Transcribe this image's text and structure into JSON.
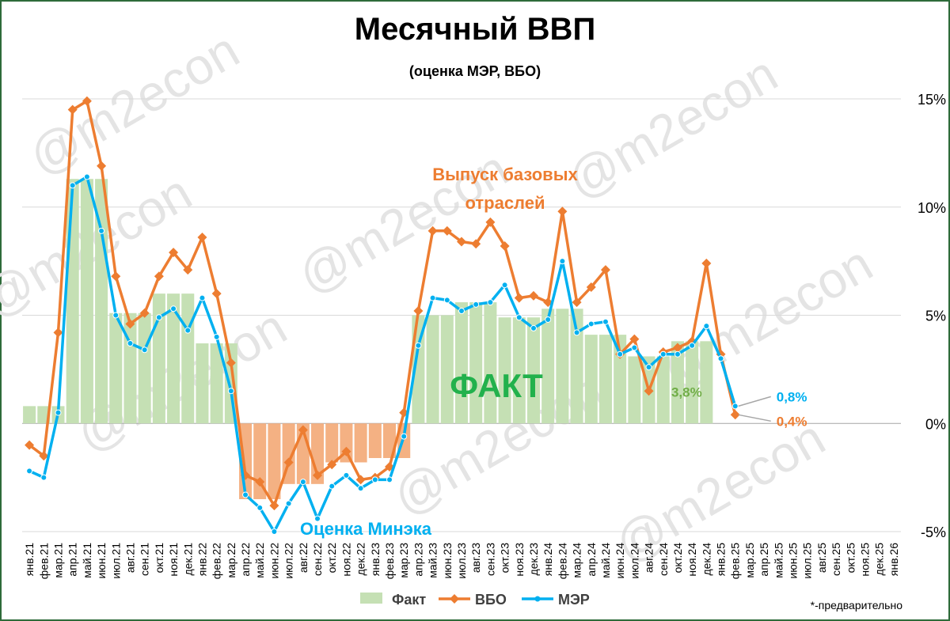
{
  "chart_data": {
    "type": "bar-line",
    "title": "Месячный ВВП",
    "subtitle": "(оценка МЭР, ВБО)",
    "watermark": "@m2econ",
    "note": "*-предварительно",
    "annotations": [
      {
        "text": [
          "Выпуск базовых",
          "отраслей"
        ],
        "color": "#ed7d31"
      },
      {
        "text": [
          "Оценка Минэка"
        ],
        "color": "#00b0f0"
      },
      {
        "text": [
          "ФАКТ"
        ],
        "color": "#22b14c"
      }
    ],
    "categories": [
      "янв.21",
      "фев.21",
      "мар.21",
      "апр.21",
      "май.21",
      "июн.21",
      "июл.21",
      "авг.21",
      "сен.21",
      "окт.21",
      "ноя.21",
      "дек.21",
      "янв.22",
      "фев.22",
      "мар.22",
      "апр.22",
      "май.22",
      "июн.22",
      "июл.22",
      "авг.22",
      "сен.22",
      "окт.22",
      "ноя.22",
      "дек.22",
      "янв.23",
      "фев.23",
      "мар.23",
      "апр.23",
      "май.23",
      "июн.23",
      "июл.23",
      "авг.23",
      "сен.23",
      "окт.23",
      "ноя.23",
      "дек.23",
      "янв.24",
      "фев.24",
      "мар.24",
      "апр.24",
      "май.24",
      "июн.24",
      "июл.24",
      "авг.24",
      "сен.24",
      "окт.24",
      "ноя.24",
      "дек.24",
      "янв.25",
      "фев.25",
      "мар.25",
      "апр.25",
      "май.25",
      "июн.25",
      "июл.25",
      "авг.25",
      "сен.25",
      "окт.25",
      "ноя.25",
      "дек.25",
      "янв.26"
    ],
    "series": [
      {
        "name": "Факт",
        "kind": "bar",
        "color": "#c5e0b4",
        "negative_color": "#f4b183",
        "label_color": "#70ad47",
        "values": [
          0.8,
          0.8,
          0.8,
          11.3,
          11.3,
          11.3,
          5.1,
          5.1,
          5.1,
          6.0,
          6.0,
          6.0,
          3.7,
          3.7,
          3.7,
          -3.5,
          -3.5,
          -3.5,
          -2.8,
          -2.8,
          -2.8,
          -1.8,
          -1.8,
          -1.8,
          -1.6,
          -1.6,
          -1.6,
          5.0,
          5.0,
          5.0,
          5.6,
          5.6,
          5.6,
          4.9,
          4.9,
          4.9,
          5.3,
          5.3,
          5.3,
          4.1,
          4.1,
          4.1,
          3.1,
          3.1,
          3.1,
          3.8,
          3.8,
          3.8,
          null,
          null,
          null,
          null,
          null,
          null,
          null,
          null,
          null,
          null,
          null,
          null,
          null
        ],
        "value_labels": [
          null,
          null,
          null,
          null,
          null,
          null,
          null,
          null,
          null,
          null,
          null,
          null,
          null,
          null,
          null,
          null,
          null,
          null,
          null,
          null,
          null,
          null,
          null,
          null,
          null,
          null,
          null,
          null,
          null,
          null,
          null,
          null,
          null,
          null,
          null,
          null,
          null,
          null,
          null,
          null,
          null,
          null,
          null,
          null,
          null,
          null,
          null,
          "3,8%",
          null,
          null,
          null,
          null,
          null,
          null,
          null,
          null,
          null,
          null,
          null,
          null,
          null
        ]
      },
      {
        "name": "ВБО",
        "kind": "line",
        "marker": "diamond",
        "color": "#ed7d31",
        "values": [
          -1.0,
          -1.5,
          4.2,
          14.5,
          14.9,
          11.9,
          6.8,
          4.6,
          5.1,
          6.8,
          7.9,
          7.1,
          8.6,
          6.0,
          2.8,
          -2.4,
          -2.7,
          -3.8,
          -1.8,
          -0.3,
          -2.4,
          -1.9,
          -1.3,
          -2.6,
          -2.5,
          -2.0,
          0.5,
          5.2,
          8.9,
          8.9,
          8.4,
          8.3,
          9.3,
          8.2,
          5.8,
          5.9,
          5.6,
          9.8,
          5.6,
          6.3,
          7.1,
          3.2,
          3.9,
          1.5,
          3.3,
          3.5,
          3.8,
          7.4,
          3.2,
          0.4,
          null,
          null,
          null,
          null,
          null,
          null,
          null,
          null,
          null,
          null,
          null
        ],
        "value_labels": [
          null,
          null,
          null,
          null,
          null,
          null,
          null,
          null,
          null,
          null,
          null,
          null,
          null,
          null,
          null,
          null,
          null,
          null,
          null,
          null,
          null,
          null,
          null,
          null,
          null,
          null,
          null,
          null,
          null,
          null,
          null,
          null,
          null,
          null,
          null,
          null,
          null,
          null,
          null,
          null,
          null,
          null,
          null,
          null,
          null,
          null,
          null,
          null,
          null,
          "0,4%",
          null,
          null,
          null,
          null,
          null,
          null,
          null,
          null,
          null,
          null,
          null
        ]
      },
      {
        "name": "МЭР",
        "kind": "line",
        "marker": "circle",
        "color": "#00b0f0",
        "values": [
          -2.2,
          -2.5,
          0.5,
          11.0,
          11.4,
          8.9,
          5.0,
          3.7,
          3.4,
          4.9,
          5.3,
          4.3,
          5.8,
          4.0,
          1.5,
          -3.3,
          -3.9,
          -5.0,
          -3.7,
          -2.7,
          -4.4,
          -2.9,
          -2.4,
          -3.0,
          -2.6,
          -2.6,
          -0.6,
          3.6,
          5.8,
          5.7,
          5.2,
          5.5,
          5.6,
          6.4,
          4.9,
          4.4,
          4.8,
          7.5,
          4.2,
          4.6,
          4.7,
          3.2,
          3.5,
          2.6,
          3.2,
          3.2,
          3.6,
          4.5,
          3.0,
          0.8,
          null,
          null,
          null,
          null,
          null,
          null,
          null,
          null,
          null,
          null,
          null
        ],
        "value_labels": [
          null,
          null,
          null,
          null,
          null,
          null,
          null,
          null,
          null,
          null,
          null,
          null,
          null,
          null,
          null,
          null,
          null,
          null,
          null,
          null,
          null,
          null,
          null,
          null,
          null,
          null,
          null,
          null,
          null,
          null,
          null,
          null,
          null,
          null,
          null,
          null,
          null,
          null,
          null,
          null,
          null,
          null,
          null,
          null,
          null,
          null,
          null,
          null,
          null,
          "0,8%",
          null,
          null,
          null,
          null,
          null,
          null,
          null,
          null,
          null,
          null,
          null
        ]
      }
    ],
    "ylim": [
      -5,
      15
    ],
    "yticks": [
      {
        "value": -5,
        "label": "-5%"
      },
      {
        "value": 0,
        "label": "0%"
      },
      {
        "value": 5,
        "label": "5%"
      },
      {
        "value": 10,
        "label": "10%"
      },
      {
        "value": 15,
        "label": "15%"
      }
    ],
    "grid": true,
    "legend": "bottom"
  }
}
